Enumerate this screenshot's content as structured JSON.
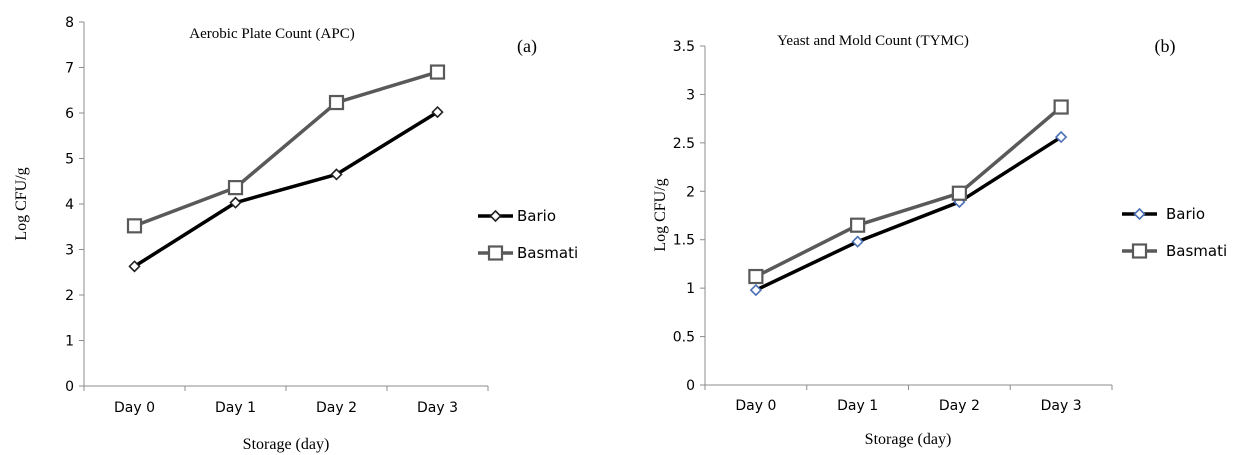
{
  "chart_data": [
    {
      "type": "line",
      "title": "Aerobic Plate Count (APC)",
      "panel_label": "(a)",
      "xlabel": "Storage (day)",
      "ylabel": "Log CFU/g",
      "categories": [
        "Day 0",
        "Day 1",
        "Day 2",
        "Day 3"
      ],
      "ylim": [
        0,
        8
      ],
      "yticks": [
        "0",
        "1",
        "2",
        "3",
        "4",
        "5",
        "6",
        "7",
        "8"
      ],
      "legend": "right",
      "grid": false,
      "series": [
        {
          "name": "Bario",
          "values": [
            2.63,
            4.03,
            4.65,
            6.02
          ],
          "color": "#000000",
          "marker": "diamond",
          "marker_fill": "#ffffff",
          "marker_stroke": "#222222"
        },
        {
          "name": "Basmati",
          "values": [
            3.52,
            4.36,
            6.23,
            6.9
          ],
          "color": "#595959",
          "marker": "square",
          "marker_fill": "#ffffff",
          "marker_stroke": "#595959"
        }
      ]
    },
    {
      "type": "line",
      "title": "Yeast and Mold Count (TYMC)",
      "panel_label": "(b)",
      "xlabel": "Storage (day)",
      "ylabel": "Log CFU/g",
      "categories": [
        "Day 0",
        "Day 1",
        "Day 2",
        "Day 3"
      ],
      "ylim": [
        0,
        3.5
      ],
      "yticks": [
        "0",
        "0.5",
        "1",
        "1.5",
        "2",
        "2.5",
        "3",
        "3.5"
      ],
      "legend": "right",
      "grid": false,
      "series": [
        {
          "name": "Bario",
          "values": [
            0.98,
            1.48,
            1.89,
            2.56
          ],
          "color": "#000000",
          "marker": "diamond",
          "marker_fill": "#ffffff",
          "marker_stroke": "#4a6fb5"
        },
        {
          "name": "Basmati",
          "values": [
            1.12,
            1.65,
            1.98,
            2.87
          ],
          "color": "#595959",
          "marker": "square",
          "marker_fill": "#ffffff",
          "marker_stroke": "#595959"
        }
      ]
    }
  ]
}
